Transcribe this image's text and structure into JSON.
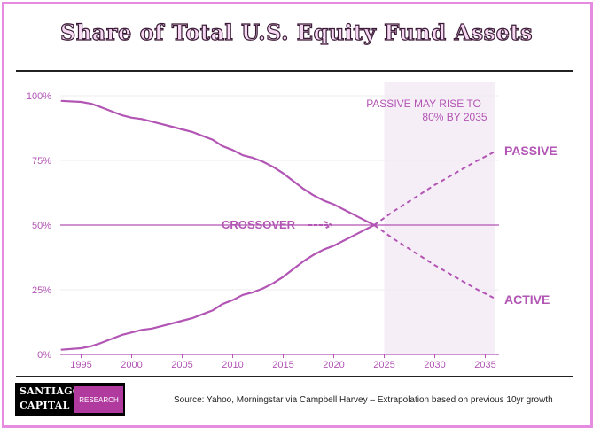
{
  "title": "Share of Total U.S. Equity Fund Assets",
  "source": "Source: Yahoo, Morningstar via Campbell Harvey – Extrapolation based on previous 10yr growth",
  "logo": {
    "line1": "SANTIAGO",
    "line2": "CAPITAL",
    "badge": "RESEARCH"
  },
  "colors": {
    "series": "#b255b4",
    "shade": "#f6eef7",
    "grid": "#ececec",
    "text": "#b255b4",
    "frame": "#e58be0"
  },
  "chart_data": {
    "type": "line",
    "title": "Share of Total U.S. Equity Fund Assets",
    "xlim": [
      1993,
      2036
    ],
    "ylim": [
      0,
      100
    ],
    "x_ticks": [
      1995,
      2000,
      2005,
      2010,
      2015,
      2020,
      2025,
      2030,
      2035
    ],
    "y_ticks": [
      0,
      25,
      50,
      75,
      100
    ],
    "y_tick_labels": [
      "0%",
      "25%",
      "50%",
      "75%",
      "100%"
    ],
    "grid": true,
    "reference_line": 50,
    "projection_shaded_range": [
      2025,
      2036
    ],
    "series": [
      {
        "name": "ACTIVE",
        "x": [
          1993,
          1995,
          1996,
          1997,
          1998,
          1999,
          2000,
          2001,
          2002,
          2003,
          2004,
          2005,
          2006,
          2007,
          2008,
          2009,
          2010,
          2011,
          2012,
          2013,
          2014,
          2015,
          2016,
          2017,
          2018,
          2019,
          2020,
          2021,
          2022,
          2023,
          2024
        ],
        "y": [
          98,
          97.6,
          96.9,
          95.5,
          94,
          92.5,
          91.5,
          91,
          90,
          89,
          88,
          87,
          86,
          84.5,
          83,
          80.5,
          79,
          77,
          76,
          74.5,
          72.5,
          70,
          67,
          64,
          61.5,
          59.5,
          58,
          56,
          54,
          52,
          50
        ],
        "projection_x": [
          2024,
          2026,
          2028,
          2030,
          2032,
          2034,
          2036
        ],
        "projection_y": [
          50,
          44.5,
          39.5,
          34.5,
          30,
          25.5,
          21.5
        ]
      },
      {
        "name": "PASSIVE",
        "x": [
          1993,
          1995,
          1996,
          1997,
          1998,
          1999,
          2000,
          2001,
          2002,
          2003,
          2004,
          2005,
          2006,
          2007,
          2008,
          2009,
          2010,
          2011,
          2012,
          2013,
          2014,
          2015,
          2016,
          2017,
          2018,
          2019,
          2020,
          2021,
          2022,
          2023,
          2024
        ],
        "y": [
          1.8,
          2.4,
          3.2,
          4.5,
          6,
          7.5,
          8.5,
          9.5,
          10,
          11,
          12,
          13,
          14,
          15.5,
          17,
          19.5,
          21,
          23,
          24,
          25.5,
          27.5,
          30,
          33,
          36,
          38.5,
          40.5,
          42,
          44,
          46,
          48,
          50
        ],
        "projection_x": [
          2024,
          2026,
          2028,
          2030,
          2032,
          2034,
          2036
        ],
        "projection_y": [
          50,
          55.5,
          60.5,
          65.5,
          70,
          74.5,
          78.5
        ]
      }
    ],
    "annotations": [
      {
        "text": "PASSIVE MAY RISE TO",
        "text2": "80% BY 2035"
      },
      {
        "text": "CROSSOVER"
      }
    ]
  }
}
